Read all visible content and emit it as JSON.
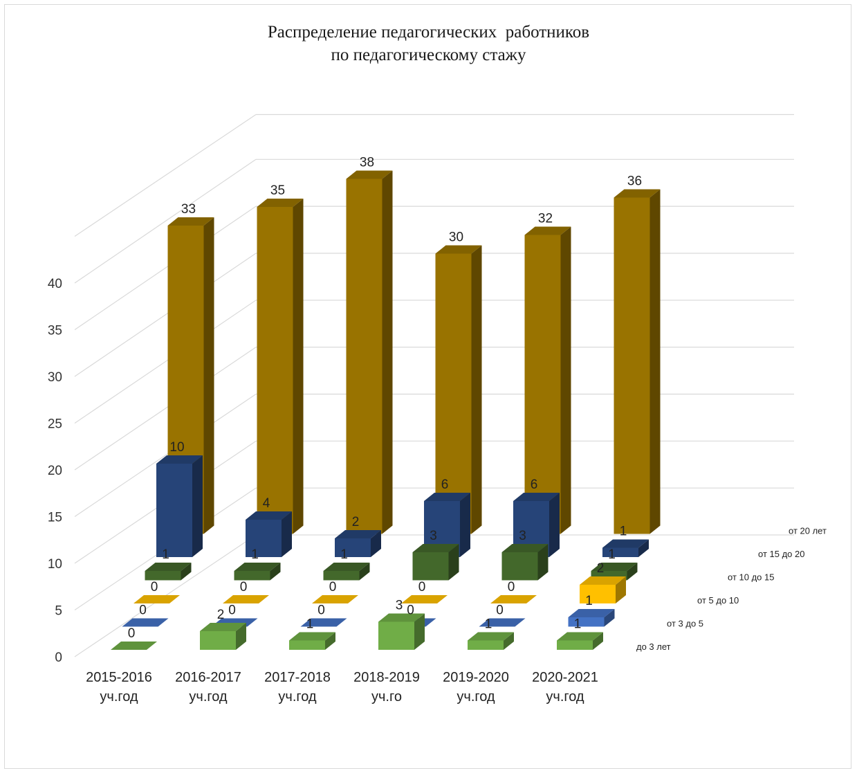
{
  "chart_data": {
    "type": "bar",
    "title": [
      "Распределение педагогических  работников",
      "по педагогическому стажу"
    ],
    "categories": [
      [
        "2015-2016",
        "уч.год"
      ],
      [
        "2016-2017",
        "уч.год"
      ],
      [
        "2017-2018",
        "уч.год"
      ],
      [
        "2018-2019",
        "уч.го"
      ],
      [
        "2019-2020",
        "уч.год"
      ],
      [
        "2020-2021",
        "уч.год"
      ]
    ],
    "yticks": [
      0,
      5,
      10,
      15,
      20,
      25,
      30,
      35,
      40
    ],
    "ylim": [
      0,
      40
    ],
    "series": [
      {
        "name": "до 3 лет",
        "values": [
          0,
          2,
          1,
          3,
          1,
          1
        ],
        "color": "#70ad47"
      },
      {
        "name": "от 3 до 5",
        "values": [
          0,
          0,
          0,
          0,
          0,
          1
        ],
        "color": "#4472c4"
      },
      {
        "name": "от 5 до 10",
        "values": [
          0,
          0,
          0,
          0,
          0,
          2
        ],
        "color": "#ffc000"
      },
      {
        "name": "от 10 до 15",
        "values": [
          1,
          1,
          1,
          3,
          3,
          1
        ],
        "color": "#43682b"
      },
      {
        "name": "от 15 до 20",
        "values": [
          10,
          4,
          2,
          6,
          6,
          1
        ],
        "color": "#264478"
      },
      {
        "name": "от 20 лет",
        "values": [
          33,
          35,
          38,
          30,
          32,
          36
        ],
        "color": "#997300"
      }
    ],
    "grid": true,
    "legend": "series labels along depth axis (right)"
  }
}
